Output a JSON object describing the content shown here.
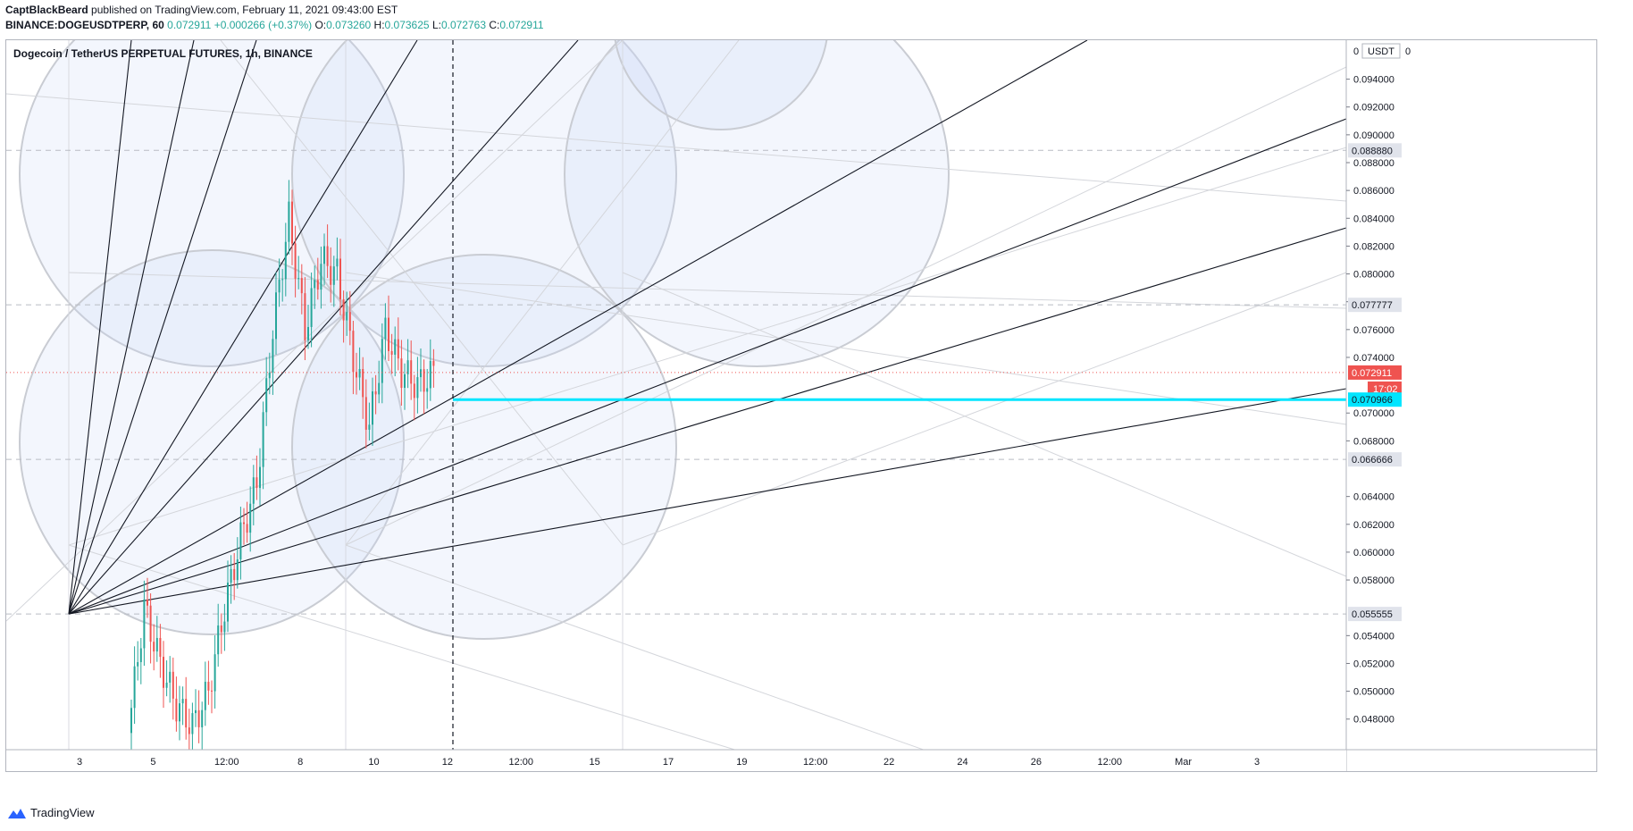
{
  "header": {
    "author": "CaptBlackBeard",
    "published_text": "published on TradingView.com, February 11, 2021 09:43:00 EST",
    "symbol": "BINANCE:DOGEUSDTPERP, 60",
    "last": "0.072911",
    "change": "+0.000266 (+0.37%)",
    "o_label": "O:",
    "o": "0.073260",
    "h_label": "H:",
    "h": "0.073625",
    "l_label": "L:",
    "l": "0.072763",
    "c_label": "C:",
    "c": "0.072911"
  },
  "legend_title": "Dogecoin / TetherUS PERPETUAL FUTURES, 1h, BINANCE",
  "footer": {
    "brand": "TradingView",
    "logo_icon": "tradingview-logo-icon"
  },
  "colors": {
    "up": "#26a69a",
    "down": "#ef5350",
    "cyan_line": "#00e5ff",
    "price_badge": "#ef5350",
    "level_badge": "#e0e3eb"
  },
  "chart_data": {
    "type": "candlestick",
    "currency_label": "USDT",
    "currency_zero": "0",
    "ylim": [
      0.0458,
      0.0968
    ],
    "y_ticks": [
      "0.094000",
      "0.092000",
      "0.090000",
      "0.088000",
      "0.086000",
      "0.084000",
      "0.082000",
      "0.080000",
      "0.078000",
      "0.076000",
      "0.074000",
      "0.070000",
      "0.068000",
      "0.064000",
      "0.062000",
      "0.060000",
      "0.058000",
      "0.054000",
      "0.052000",
      "0.050000",
      "0.048000"
    ],
    "x_ticks": [
      "3",
      "5",
      "12:00",
      "8",
      "10",
      "12",
      "12:00",
      "15",
      "17",
      "19",
      "12:00",
      "22",
      "24",
      "26",
      "12:00",
      "Mar",
      "3"
    ],
    "horizontal_levels": [
      {
        "value": 0.08888,
        "label": "0.088880"
      },
      {
        "value": 0.077777,
        "label": "0.077777"
      },
      {
        "value": 0.066666,
        "label": "0.066666"
      },
      {
        "value": 0.055555,
        "label": "0.055555"
      }
    ],
    "last_price": {
      "value": 0.072911,
      "label": "0.072911",
      "countdown": "17:02"
    },
    "cyan_level": {
      "value": 0.070966,
      "label": "0.070966"
    },
    "candles_close_trend": [
      0.047,
      0.056,
      0.052,
      0.049,
      0.0475,
      0.05,
      0.056,
      0.061,
      0.065,
      0.076,
      0.084,
      0.076,
      0.081,
      0.08,
      0.074,
      0.069,
      0.076,
      0.073,
      0.072,
      0.0729
    ]
  }
}
